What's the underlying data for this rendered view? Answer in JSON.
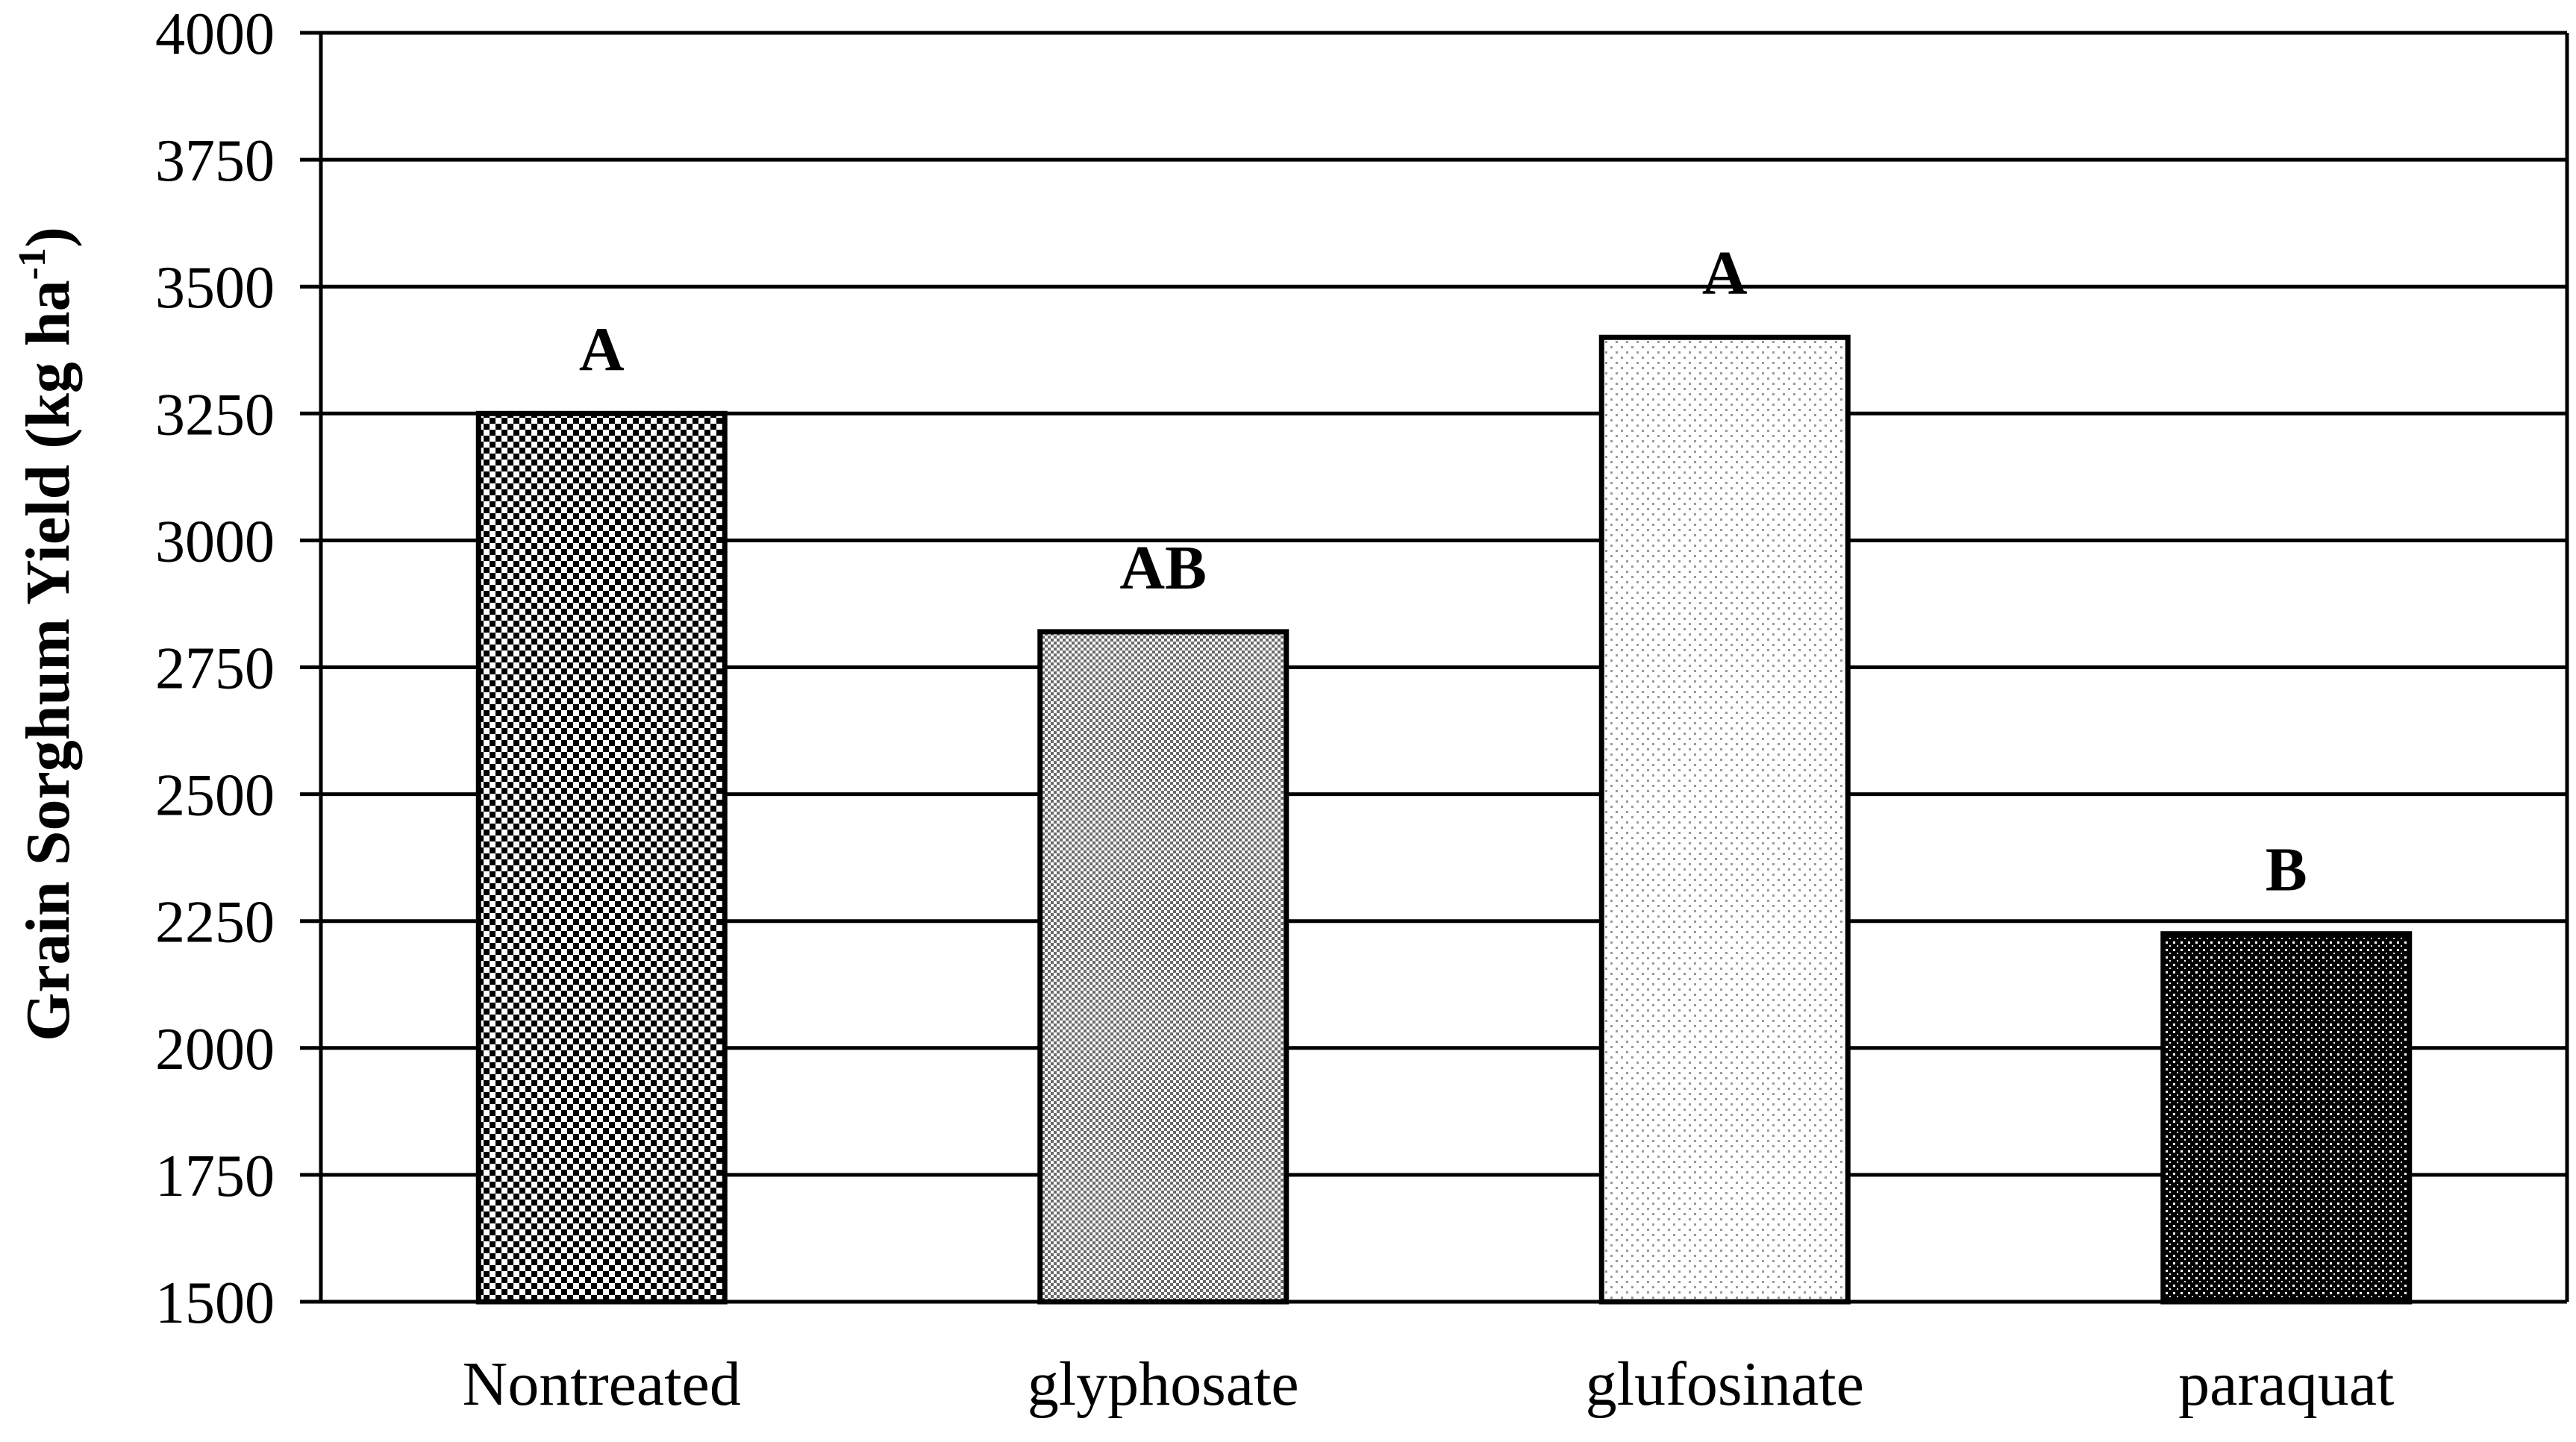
{
  "chart_data": {
    "type": "bar",
    "categories": [
      "Nontreated",
      "glyphosate",
      "glufosinate",
      "paraquat"
    ],
    "values": [
      3250,
      2820,
      3400,
      2225
    ],
    "significance_letters": [
      "A",
      "AB",
      "A",
      "B"
    ],
    "bar_patterns": [
      "checker-coarse",
      "checker-fine",
      "dots-light",
      "dots-dark"
    ],
    "title": "",
    "xlabel": "",
    "ylabel": {
      "main": "Grain Sorghum Yield (kg ha",
      "superscript": "-1",
      "close": ")"
    },
    "ylim": [
      1500,
      4000
    ],
    "yticks": [
      1500,
      1750,
      2000,
      2250,
      2500,
      2750,
      3000,
      3250,
      3500,
      3750,
      4000
    ],
    "grid": true,
    "legend": "none",
    "colors": {
      "background": "#ffffff",
      "axis": "#000000",
      "grid": "#000000",
      "bar_outline": "#000000"
    }
  }
}
